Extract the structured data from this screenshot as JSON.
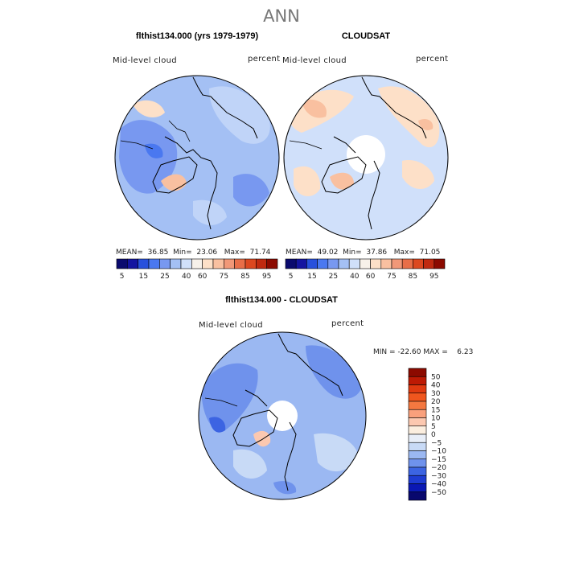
{
  "main_title": "ANN",
  "panels": [
    {
      "title": "flthist134.000 (yrs 1979-1979)",
      "variable": "Mid-level cloud",
      "units": "percent",
      "stats": {
        "mean_label": "MEAN=",
        "mean": "36.85",
        "min_label": "Min=",
        "min": "23.06",
        "max_label": "Max=",
        "max": "71.74"
      }
    },
    {
      "title": "CLOUDSAT",
      "variable": "Mid-level cloud",
      "units": "percent",
      "stats": {
        "mean_label": "MEAN=",
        "mean": "49.02",
        "min_label": "Min=",
        "min": "37.86",
        "max_label": "Max=",
        "max": "71.05"
      }
    },
    {
      "title": "flthist134.000 - CLOUDSAT",
      "variable": "Mid-level cloud",
      "units": "percent",
      "stats": {
        "min_label": "MIN =",
        "min": "-22.60",
        "max_label": "MAX =",
        "max": "6.23"
      }
    }
  ],
  "colorbar_abs": {
    "labels": [
      "5",
      "15",
      "25",
      "40",
      "60",
      "75",
      "85",
      "95"
    ],
    "colors": [
      "#0a0a6e",
      "#1414a0",
      "#2850dc",
      "#4a78f0",
      "#7898f0",
      "#a4c0f4",
      "#d0e0fa",
      "#f7f1ea",
      "#fde0c8",
      "#f9c0a0",
      "#f19878",
      "#e86e48",
      "#dc4820",
      "#c02a10",
      "#8c0a00"
    ]
  },
  "colorbar_diff": {
    "labels": [
      "50",
      "40",
      "30",
      "20",
      "15",
      "10",
      "5",
      "0",
      "−5",
      "−10",
      "−15",
      "−20",
      "−30",
      "−40",
      "−50"
    ],
    "colors": [
      "#8c0a00",
      "#bd1a04",
      "#e03a10",
      "#f0561e",
      "#f47840",
      "#f9a07c",
      "#fcc8b0",
      "#fbeedf",
      "#e8eef8",
      "#c8daf6",
      "#9bb8f2",
      "#6f92ec",
      "#3c64e2",
      "#1e3cd2",
      "#0a18b4",
      "#08086e"
    ]
  }
}
